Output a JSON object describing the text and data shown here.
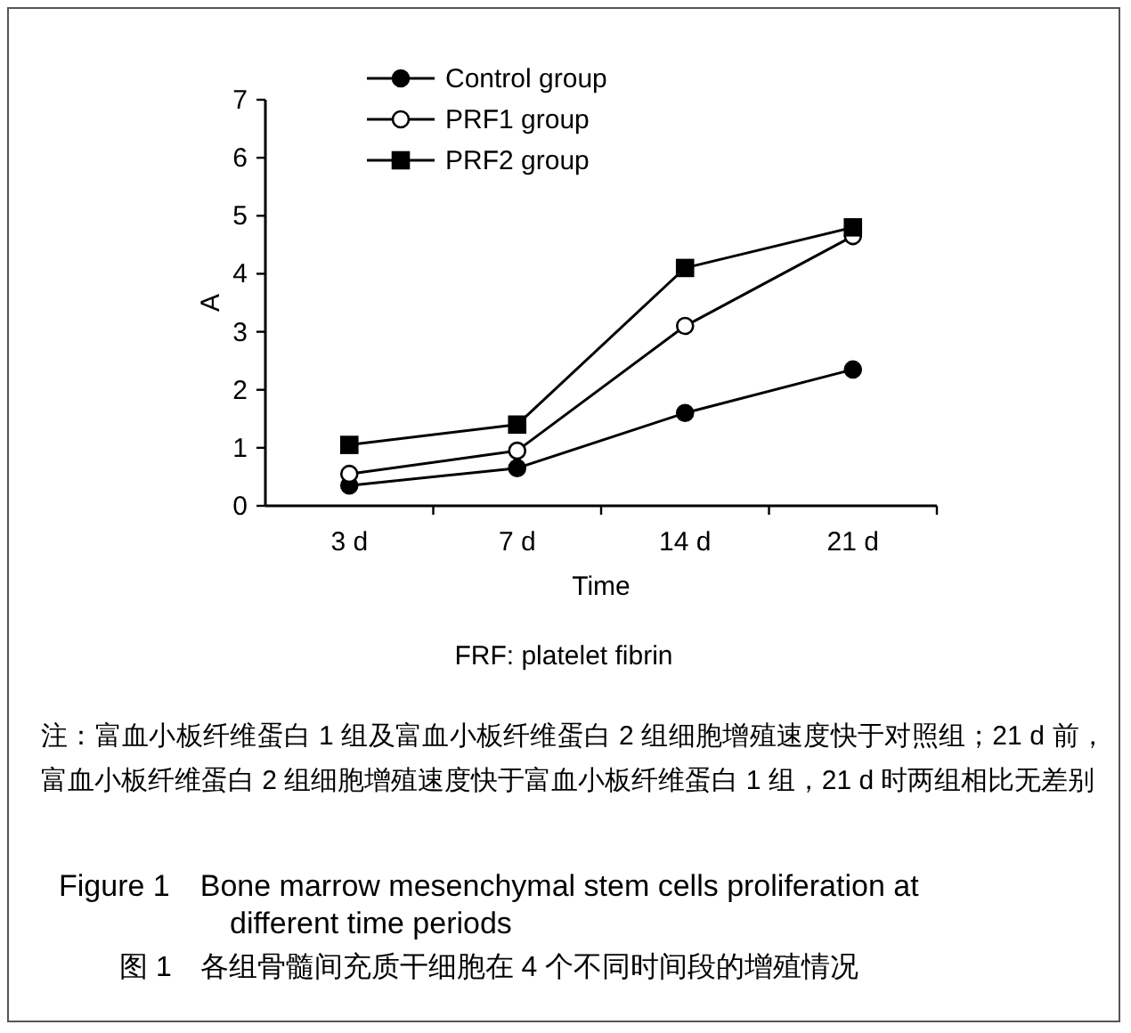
{
  "chart_data": {
    "type": "line",
    "title": "Figure 1　Bone marrow mesenchymal stem cells proliferation at different time periods",
    "subtitle": "图 1　各组骨髓间充质干细胞在 4 个不同时间段的增殖情况",
    "xlabel": "Time",
    "ylabel": "A",
    "categories": [
      "3 d",
      "7 d",
      "14 d",
      "21 d"
    ],
    "ylim": [
      0,
      7
    ],
    "yticks": [
      0,
      1,
      2,
      3,
      4,
      5,
      6,
      7
    ],
    "legend": "top left",
    "grid": false,
    "line_style": "solid",
    "series": [
      {
        "name": "Control group",
        "color": "#000000",
        "marker": "circle",
        "values": [
          0.35,
          0.65,
          1.6,
          2.35
        ]
      },
      {
        "name": "PRF1 group",
        "color": "#000000",
        "marker": "circle",
        "colors": [
          "#ffffff",
          "#ffffff",
          "#ffffff",
          "#ffffff"
        ],
        "values": [
          0.55,
          0.95,
          3.1,
          4.65
        ]
      },
      {
        "name": "PRF2 group",
        "color": "#000000",
        "marker": "square",
        "values": [
          1.05,
          1.4,
          4.1,
          4.8
        ]
      }
    ],
    "annotations": [
      "FRF: platelet fibrin",
      "注：富血小板纤维蛋白 1 组及富血小板纤维蛋白 2 组细胞增殖速度快于对照组；21 d 前，富血小板纤维蛋白 2 组细胞增殖速度快于富血小板纤维蛋白 1 组，21 d 时两组相比无差别"
    ]
  }
}
